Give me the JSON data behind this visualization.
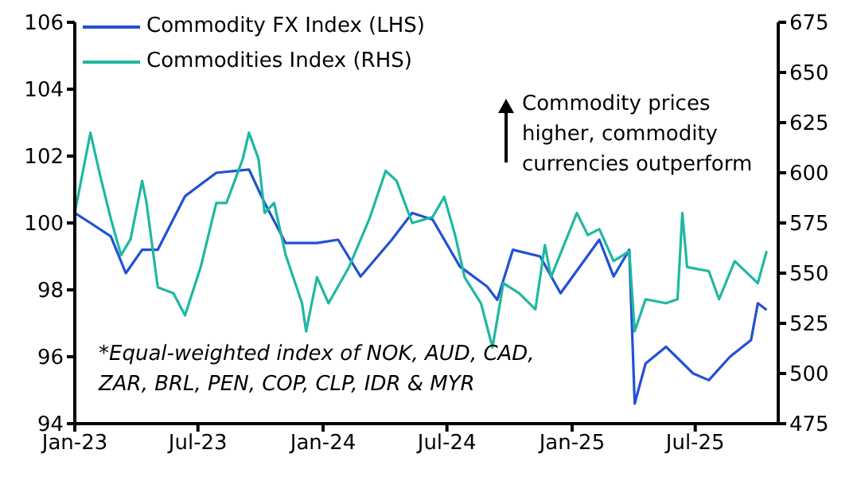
{
  "chart_data": {
    "type": "line",
    "xlim": [
      "2023-01-01",
      "2025-10-31"
    ],
    "xticks": [
      {
        "value": "2023-01-01",
        "label": "Jan-23"
      },
      {
        "value": "2023-07-01",
        "label": "Jul-23"
      },
      {
        "value": "2024-01-01",
        "label": "Jan-24"
      },
      {
        "value": "2024-07-01",
        "label": "Jul-24"
      },
      {
        "value": "2025-01-01",
        "label": "Jan-25"
      },
      {
        "value": "2025-07-01",
        "label": "Jul-25"
      }
    ],
    "ylim": [
      94,
      106
    ],
    "yticks": [
      94,
      96,
      98,
      100,
      102,
      104,
      106
    ],
    "y2lim": [
      475,
      675
    ],
    "y2ticks": [
      475,
      500,
      525,
      550,
      575,
      600,
      625,
      650,
      675
    ],
    "grid": false,
    "legend": "top left",
    "marker": "none",
    "line_style": "solid",
    "annotations": [
      "Commodity prices\nhigher, commodity\ncurrencies outperform",
      "*Equal-weighted index of NOK, AUD, CAD,\nZAR, BRL, PEN, COP, CLP, IDR & MYR"
    ],
    "series": [
      {
        "name": "Commodity FX Index (LHS)",
        "color": "#2251d1",
        "x": [
          "2023-01-01",
          "2023-01-24",
          "2023-02-23",
          "2023-03-17",
          "2023-04-10",
          "2023-05-03",
          "2023-06-12",
          "2023-07-28",
          "2023-09-14",
          "2023-10-07",
          "2023-11-07",
          "2023-12-23",
          "2024-01-23",
          "2024-02-25",
          "2024-04-11",
          "2024-05-11",
          "2024-06-10",
          "2024-07-20",
          "2024-08-29",
          "2024-09-13",
          "2024-10-06",
          "2024-11-15",
          "2024-12-15",
          "2025-02-10",
          "2025-03-03",
          "2025-03-26",
          "2025-04-03",
          "2025-04-19",
          "2025-05-19",
          "2025-06-28",
          "2025-07-21",
          "2025-08-21",
          "2025-09-21",
          "2025-10-01",
          "2025-10-14"
        ],
        "values": [
          100.3,
          100.0,
          99.6,
          98.5,
          99.2,
          99.2,
          100.8,
          101.5,
          101.6,
          100.6,
          99.4,
          99.4,
          99.5,
          98.4,
          99.5,
          100.3,
          100.1,
          98.7,
          98.1,
          97.7,
          99.2,
          99.0,
          97.9,
          99.5,
          98.4,
          99.2,
          94.6,
          95.8,
          96.3,
          95.5,
          95.3,
          96.0,
          96.5,
          97.6,
          97.4
        ]
      },
      {
        "name": "Commodities Index (RHS)",
        "color": "#1fb8a2",
        "axis": "y2",
        "x": [
          "2023-01-01",
          "2023-01-24",
          "2023-02-07",
          "2023-02-23",
          "2023-03-10",
          "2023-03-24",
          "2023-04-10",
          "2023-04-16",
          "2023-05-03",
          "2023-05-26",
          "2023-06-12",
          "2023-07-05",
          "2023-07-28",
          "2023-08-12",
          "2023-09-05",
          "2023-09-14",
          "2023-09-28",
          "2023-10-07",
          "2023-10-21",
          "2023-11-07",
          "2023-12-01",
          "2023-12-07",
          "2023-12-23",
          "2024-01-09",
          "2024-02-08",
          "2024-03-09",
          "2024-04-02",
          "2024-04-18",
          "2024-05-11",
          "2024-06-10",
          "2024-06-27",
          "2024-07-13",
          "2024-07-27",
          "2024-08-20",
          "2024-09-06",
          "2024-09-22",
          "2024-10-15",
          "2024-11-08",
          "2024-11-22",
          "2024-12-01",
          "2025-01-08",
          "2025-01-24",
          "2025-02-10",
          "2025-03-03",
          "2025-03-26",
          "2025-04-03",
          "2025-04-19",
          "2025-05-19",
          "2025-06-05",
          "2025-06-12",
          "2025-06-19",
          "2025-07-21",
          "2025-08-05",
          "2025-08-28",
          "2025-10-01",
          "2025-10-14"
        ],
        "values": [
          580,
          620,
          599,
          577,
          559,
          567,
          596,
          586,
          543,
          540,
          529,
          553,
          585,
          585,
          607,
          620,
          607,
          580,
          585,
          559,
          535,
          521,
          548,
          535,
          553,
          577,
          601,
          596,
          575,
          578,
          588,
          569,
          548,
          535,
          513,
          545,
          540,
          532,
          564,
          548,
          580,
          569,
          572,
          556,
          561,
          521,
          537,
          535,
          537,
          580,
          553,
          551,
          537,
          556,
          545,
          561
        ]
      }
    ]
  }
}
